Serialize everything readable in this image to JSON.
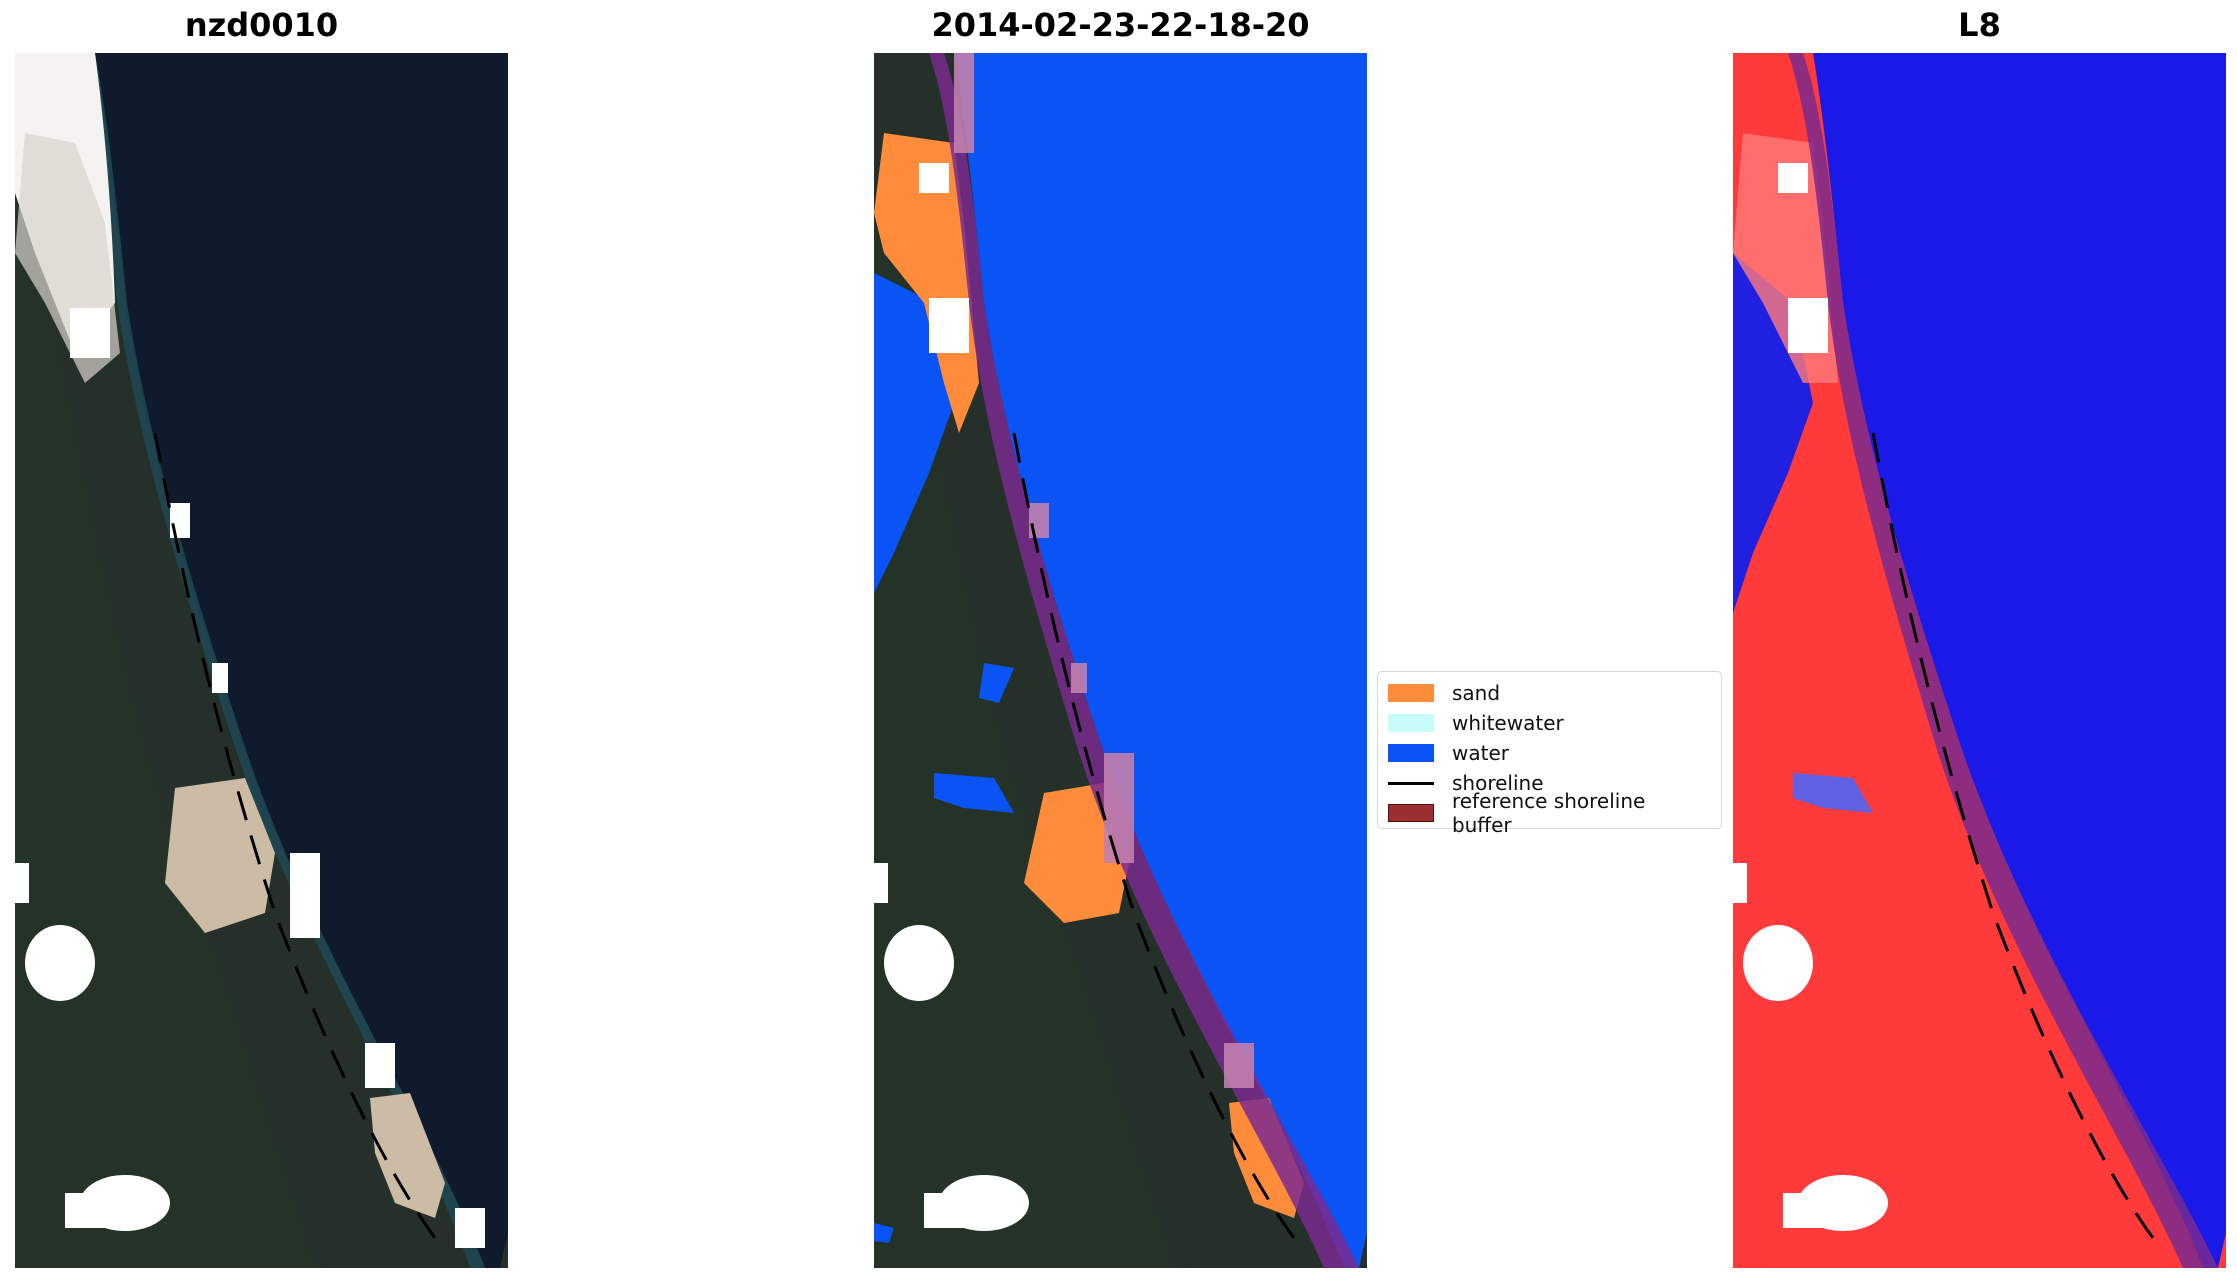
{
  "titles": {
    "site": "nzd0010",
    "date": "2014-02-23-22-18-20",
    "satellite": "L8"
  },
  "legend": {
    "items": [
      {
        "label": "sand",
        "color": "#ff8c3a"
      },
      {
        "label": "whitewater",
        "color": "#c8fcfa"
      },
      {
        "label": "water",
        "color": "#0a54f5"
      },
      {
        "label": "shoreline",
        "color": "#000000"
      },
      {
        "label": "reference shoreline buffer",
        "color": "#9b2f2f"
      }
    ]
  },
  "colors": {
    "ocean_rgb": "#0f1b2d",
    "land_rgb": "#242a28",
    "forest_rgb": "#243327",
    "sand_rgb": "#cfc2b0",
    "cloud": "#ffffff",
    "buffer": "#7a2a8f",
    "water_index_sea": "#1a1ae8",
    "water_index_land": "#ff2a2a"
  },
  "icons": {
    "panel1": "rgb-satellite-image",
    "panel2": "classified-image",
    "panel3": "water-index-image"
  }
}
